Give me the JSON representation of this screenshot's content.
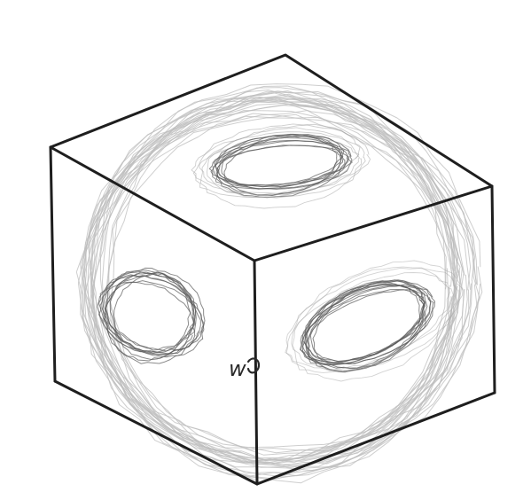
{
  "drawing": {
    "subject": "cube-with-inscribed-sphere-sketch",
    "marker_text": "w",
    "colors": {
      "background": "#ffffff",
      "cube_edge": "#1e1e1e",
      "sphere_sketch": "#bdbdbd",
      "face_circle_dark": "#5a5a5a",
      "face_circle_light": "#9e9e9e",
      "marker": "#2a2a2a"
    }
  }
}
